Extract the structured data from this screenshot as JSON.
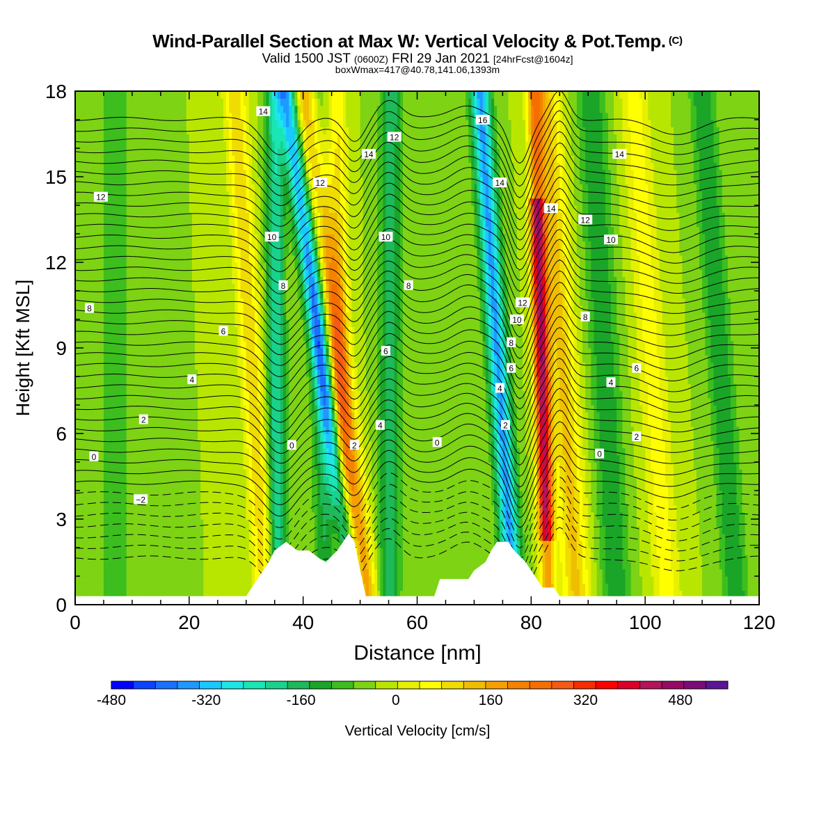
{
  "title": {
    "main": "Wind-Parallel Section at Max W: Vertical Velocity & Pot.Temp.",
    "copyright": "(C)",
    "valid_a": "Valid 1500 JST",
    "valid_utc": "(0600Z)",
    "valid_b": "FRI 29 Jan 2021",
    "forecast": "[24hrFcst@1604z]",
    "box": "boxWmax=417@40.78,141.06,1393m"
  },
  "colors": {
    "terrain": "#ffffff",
    "contour": "#000000",
    "scale": [
      "#0000ff",
      "#0a44ff",
      "#1a70ff",
      "#1f99ff",
      "#19c8ff",
      "#1ee6e6",
      "#19e6b4",
      "#19d28c",
      "#1eb95a",
      "#1aa528",
      "#3cbe1e",
      "#7dd314",
      "#b9e600",
      "#e6f000",
      "#ffff00",
      "#f0dc00",
      "#f0be00",
      "#f5a000",
      "#f58200",
      "#f56e00",
      "#f55a14",
      "#f52d00",
      "#ff0000",
      "#dc0028",
      "#b4145a",
      "#960a64",
      "#7d0a78",
      "#5a1496"
    ]
  },
  "chart_data": {
    "type": "heatmap",
    "xlabel": "Distance [nm]",
    "ylabel": "Height [Kft MSL]",
    "xlim": [
      0,
      120
    ],
    "ylim": [
      0,
      18
    ],
    "xticks": [
      0,
      20,
      40,
      60,
      80,
      100,
      120
    ],
    "yticks": [
      0,
      3,
      6,
      9,
      12,
      15,
      18
    ],
    "colorbar": {
      "label": "Vertical Velocity [cm/s]",
      "range": [
        -480,
        560
      ],
      "step": 40,
      "tick_labels": [
        -480,
        -320,
        -160,
        0,
        160,
        320,
        480
      ]
    },
    "vertical_velocity_features": [
      {
        "x_bottom": 33.5,
        "x_top": 28.0,
        "w_max": 150,
        "width": 2.0
      },
      {
        "x_bottom": 35.5,
        "x_top": 35.0,
        "w_max": -200,
        "width": 1.6
      },
      {
        "x_bottom": 44.0,
        "x_top": 42.0,
        "w_max": -120,
        "width": 1.8
      },
      {
        "x_bottom": 47.0,
        "x_top": 46.0,
        "w_max": 120,
        "width": 1.6
      },
      {
        "x_bottom": 49.0,
        "x_top": 37.0,
        "w_max": -330,
        "width": 1.7
      },
      {
        "x_bottom": 51.0,
        "x_top": 40.5,
        "w_max": 260,
        "width": 2.2
      },
      {
        "x_bottom": 55.0,
        "x_top": 55.5,
        "w_max": -140,
        "width": 2.0
      },
      {
        "x_bottom": 77.0,
        "x_top": 71.0,
        "w_max": -330,
        "width": 1.8
      },
      {
        "x_bottom": 83.0,
        "x_top": 80.5,
        "w_max": 500,
        "width": 1.3
      },
      {
        "x_bottom": 88.0,
        "x_top": 82.5,
        "w_max": 170,
        "width": 2.5
      },
      {
        "x_bottom": 95.0,
        "x_top": 90.5,
        "w_max": -120,
        "width": 2.5
      },
      {
        "x_bottom": 104.0,
        "x_top": 98.0,
        "w_max": 100,
        "width": 2.5
      },
      {
        "x_bottom": 116.0,
        "x_top": 110.0,
        "w_max": -120,
        "width": 2.2
      },
      {
        "x_bottom": 7.0,
        "x_top": 7.0,
        "w_max": -60,
        "width": 3.0
      }
    ],
    "terrain_profile": {
      "x": [
        0,
        30,
        31,
        32,
        33,
        34,
        35,
        37,
        39,
        41,
        43,
        44,
        45,
        46,
        47,
        48,
        49,
        50,
        51,
        52,
        63,
        64,
        69,
        70,
        72,
        73,
        74,
        75,
        76,
        77,
        78,
        79,
        80,
        81,
        82,
        84,
        85,
        86,
        120
      ],
      "height_kft": [
        0.3,
        0.3,
        0.6,
        0.9,
        1.2,
        1.5,
        1.9,
        2.2,
        1.9,
        1.9,
        1.6,
        1.5,
        1.7,
        1.9,
        2.2,
        2.5,
        2.2,
        1.2,
        0.3,
        0.3,
        0.3,
        0.9,
        0.9,
        1.2,
        1.5,
        1.9,
        2.2,
        2.2,
        2.2,
        1.9,
        1.7,
        1.5,
        1.2,
        0.9,
        0.6,
        0.6,
        0.3,
        0.3,
        0.3
      ]
    },
    "potential_temperature": {
      "units": "C",
      "contour_interval": 0.5,
      "contour_range": [
        -3,
        17.5
      ],
      "labels": [
        {
          "text": "12",
          "x": 4.5,
          "y": 14.3
        },
        {
          "text": "8",
          "x": 2.5,
          "y": 10.4
        },
        {
          "text": "0",
          "x": 3.3,
          "y": 5.2
        },
        {
          "text": "−2",
          "x": 11.5,
          "y": 3.7
        },
        {
          "text": "2",
          "x": 12.0,
          "y": 6.5
        },
        {
          "text": "4",
          "x": 20.5,
          "y": 7.9
        },
        {
          "text": "6",
          "x": 26.0,
          "y": 9.6
        },
        {
          "text": "14",
          "x": 33.0,
          "y": 17.3
        },
        {
          "text": "10",
          "x": 34.5,
          "y": 12.9
        },
        {
          "text": "8",
          "x": 36.5,
          "y": 11.2
        },
        {
          "text": "0",
          "x": 38.0,
          "y": 5.6
        },
        {
          "text": "12",
          "x": 43.0,
          "y": 14.8
        },
        {
          "text": "2",
          "x": 49.0,
          "y": 5.6
        },
        {
          "text": "14",
          "x": 51.5,
          "y": 15.8
        },
        {
          "text": "12",
          "x": 56.0,
          "y": 16.4
        },
        {
          "text": "10",
          "x": 54.5,
          "y": 12.9
        },
        {
          "text": "8",
          "x": 58.5,
          "y": 11.2
        },
        {
          "text": "6",
          "x": 54.5,
          "y": 8.9
        },
        {
          "text": "4",
          "x": 53.5,
          "y": 6.3
        },
        {
          "text": "0",
          "x": 63.5,
          "y": 5.7
        },
        {
          "text": "16",
          "x": 71.5,
          "y": 17.0
        },
        {
          "text": "14",
          "x": 74.5,
          "y": 14.8
        },
        {
          "text": "12",
          "x": 78.5,
          "y": 10.6
        },
        {
          "text": "10",
          "x": 77.5,
          "y": 10.0
        },
        {
          "text": "8",
          "x": 76.5,
          "y": 9.2
        },
        {
          "text": "6",
          "x": 76.5,
          "y": 8.3
        },
        {
          "text": "4",
          "x": 74.5,
          "y": 7.6
        },
        {
          "text": "2",
          "x": 75.5,
          "y": 6.3
        },
        {
          "text": "14",
          "x": 83.5,
          "y": 13.9
        },
        {
          "text": "12",
          "x": 89.5,
          "y": 13.5
        },
        {
          "text": "10",
          "x": 94.0,
          "y": 12.8
        },
        {
          "text": "14",
          "x": 95.5,
          "y": 15.8
        },
        {
          "text": "8",
          "x": 89.5,
          "y": 10.1
        },
        {
          "text": "6",
          "x": 98.5,
          "y": 8.3
        },
        {
          "text": "4",
          "x": 94.0,
          "y": 7.8
        },
        {
          "text": "2",
          "x": 98.5,
          "y": 5.9
        },
        {
          "text": "0",
          "x": 92.0,
          "y": 5.3
        }
      ]
    }
  }
}
